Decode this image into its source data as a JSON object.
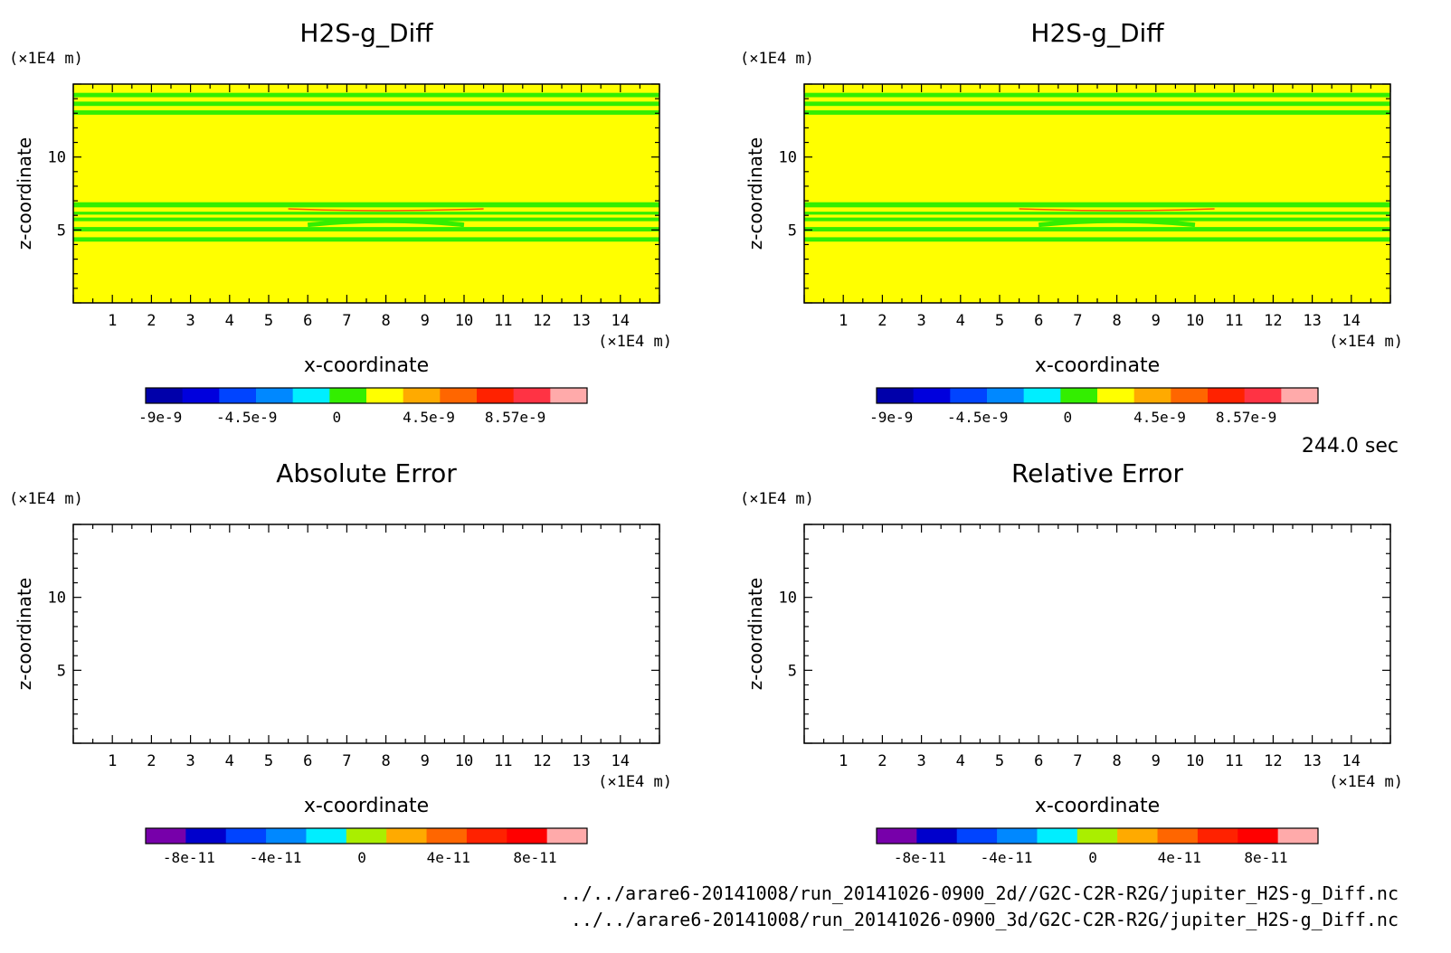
{
  "time_label": "244.0 sec",
  "footer": {
    "file_2d": "../../arare6-20141008/run_20141026-0900_2d//G2C-C2R-R2G/jupiter_H2S-g_Diff.nc",
    "file_3d": "../../arare6-20141008/run_20141026-0900_3d/G2C-C2R-R2G/jupiter_H2S-g_Diff.nc"
  },
  "chart_data": [
    {
      "type": "heatmap",
      "title": "H2S-g_Diff",
      "xlabel": "x-coordinate",
      "ylabel": "z-coordinate",
      "x_unit": "(×1E4 m)",
      "y_unit": "(×1E4 m)",
      "xlim": [
        0,
        15
      ],
      "ylim": [
        0,
        15
      ],
      "x_ticks": [
        1,
        2,
        3,
        4,
        5,
        6,
        7,
        8,
        9,
        10,
        11,
        12,
        13,
        14
      ],
      "y_ticks": [
        5,
        10
      ],
      "fill": "#ffff00",
      "bands": [
        {
          "z_from": 4.2,
          "z_to": 4.5,
          "color": "#33ee00"
        },
        {
          "z_from": 4.9,
          "z_to": 5.2,
          "color": "#33ee00"
        },
        {
          "z_from": 5.6,
          "z_to": 5.85,
          "color": "#33ee00"
        },
        {
          "z_from": 6.05,
          "z_to": 6.25,
          "color": "#33ee00"
        },
        {
          "z_from": 6.55,
          "z_to": 6.9,
          "color": "#33ee00"
        },
        {
          "z_from": 12.9,
          "z_to": 13.2,
          "color": "#33ee00"
        },
        {
          "z_from": 13.5,
          "z_to": 13.8,
          "color": "#33ee00"
        },
        {
          "z_from": 14.1,
          "z_to": 14.4,
          "color": "#33ee00"
        }
      ],
      "colorbar": {
        "colors": [
          "#0000aa",
          "#0000dd",
          "#0044ff",
          "#0088ff",
          "#00eeff",
          "#33ee00",
          "#ffff00",
          "#ffaa00",
          "#ff6600",
          "#ff2200",
          "#ff3344",
          "#ffaaaa"
        ],
        "labels": [
          "-9e-9",
          "-4.5e-9",
          "0",
          "4.5e-9",
          "8.57e-9"
        ]
      }
    },
    {
      "type": "heatmap",
      "title": "H2S-g_Diff",
      "xlabel": "x-coordinate",
      "ylabel": "z-coordinate",
      "x_unit": "(×1E4 m)",
      "y_unit": "(×1E4 m)",
      "xlim": [
        0,
        15
      ],
      "ylim": [
        0,
        15
      ],
      "x_ticks": [
        1,
        2,
        3,
        4,
        5,
        6,
        7,
        8,
        9,
        10,
        11,
        12,
        13,
        14
      ],
      "y_ticks": [
        5,
        10
      ],
      "fill": "#ffff00",
      "bands": [
        {
          "z_from": 4.2,
          "z_to": 4.5,
          "color": "#33ee00"
        },
        {
          "z_from": 4.9,
          "z_to": 5.2,
          "color": "#33ee00"
        },
        {
          "z_from": 5.6,
          "z_to": 5.85,
          "color": "#33ee00"
        },
        {
          "z_from": 6.05,
          "z_to": 6.25,
          "color": "#33ee00"
        },
        {
          "z_from": 6.55,
          "z_to": 6.9,
          "color": "#33ee00"
        },
        {
          "z_from": 12.9,
          "z_to": 13.2,
          "color": "#33ee00"
        },
        {
          "z_from": 13.5,
          "z_to": 13.8,
          "color": "#33ee00"
        },
        {
          "z_from": 14.1,
          "z_to": 14.4,
          "color": "#33ee00"
        }
      ],
      "colorbar": {
        "colors": [
          "#0000aa",
          "#0000dd",
          "#0044ff",
          "#0088ff",
          "#00eeff",
          "#33ee00",
          "#ffff00",
          "#ffaa00",
          "#ff6600",
          "#ff2200",
          "#ff3344",
          "#ffaaaa"
        ],
        "labels": [
          "-9e-9",
          "-4.5e-9",
          "0",
          "4.5e-9",
          "8.57e-9"
        ]
      }
    },
    {
      "type": "heatmap",
      "title": "Absolute Error",
      "xlabel": "x-coordinate",
      "ylabel": "z-coordinate",
      "x_unit": "(×1E4 m)",
      "y_unit": "(×1E4 m)",
      "xlim": [
        0,
        15
      ],
      "ylim": [
        0,
        15
      ],
      "x_ticks": [
        1,
        2,
        3,
        4,
        5,
        6,
        7,
        8,
        9,
        10,
        11,
        12,
        13,
        14
      ],
      "y_ticks": [
        5,
        10
      ],
      "fill": "#ffffff",
      "bands": [],
      "colorbar": {
        "colors": [
          "#7700aa",
          "#0000cc",
          "#0044ff",
          "#0088ff",
          "#00eeff",
          "#aaee00",
          "#ffaa00",
          "#ff6600",
          "#ff2200",
          "#ff0000",
          "#ffaaaa"
        ],
        "labels": [
          "-8e-11",
          "-4e-11",
          "0",
          "4e-11",
          "8e-11"
        ]
      }
    },
    {
      "type": "heatmap",
      "title": "Relative Error",
      "xlabel": "x-coordinate",
      "ylabel": "z-coordinate",
      "x_unit": "(×1E4 m)",
      "y_unit": "(×1E4 m)",
      "xlim": [
        0,
        15
      ],
      "ylim": [
        0,
        15
      ],
      "x_ticks": [
        1,
        2,
        3,
        4,
        5,
        6,
        7,
        8,
        9,
        10,
        11,
        12,
        13,
        14
      ],
      "y_ticks": [
        5,
        10
      ],
      "fill": "#ffffff",
      "bands": [],
      "colorbar": {
        "colors": [
          "#7700aa",
          "#0000cc",
          "#0044ff",
          "#0088ff",
          "#00eeff",
          "#aaee00",
          "#ffaa00",
          "#ff6600",
          "#ff2200",
          "#ff0000",
          "#ffaaaa"
        ],
        "labels": [
          "-8e-11",
          "-4e-11",
          "0",
          "4e-11",
          "8e-11"
        ]
      }
    }
  ]
}
